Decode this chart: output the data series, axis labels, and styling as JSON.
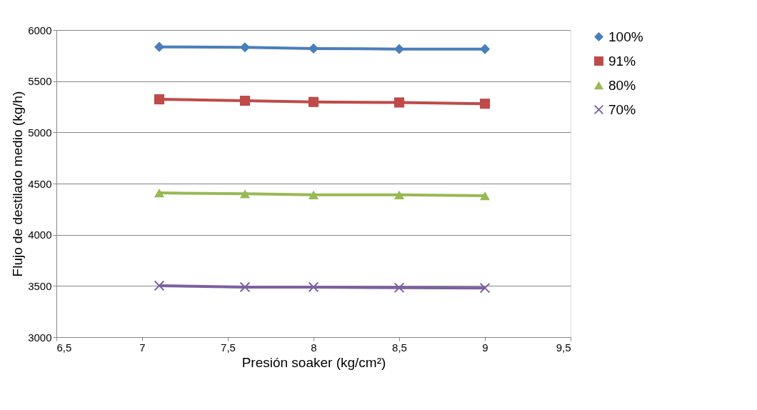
{
  "chart_data": {
    "type": "line",
    "xlabel": "Presión soaker (kg/cm²)",
    "ylabel": "Flujo de destilado medio (kg/h)",
    "x": [
      7.1,
      7.6,
      8,
      8.5,
      9
    ],
    "series": [
      {
        "name": "100%",
        "color": "#4a7ebb",
        "marker": "diamond",
        "values": [
          5835,
          5831,
          5819,
          5814,
          5814
        ]
      },
      {
        "name": "91%",
        "color": "#be4b48",
        "marker": "square",
        "values": [
          5323,
          5309,
          5297,
          5292,
          5280
        ]
      },
      {
        "name": "80%",
        "color": "#98b954",
        "marker": "triangle",
        "values": [
          4409,
          4400,
          4390,
          4390,
          4381
        ]
      },
      {
        "name": "70%",
        "color": "#7d60a0",
        "marker": "cross",
        "values": [
          3503,
          3489,
          3489,
          3483,
          3480
        ]
      }
    ],
    "xlim": [
      6.5,
      9.5
    ],
    "xticks": [
      {
        "value": 6.5,
        "label": "6,5"
      },
      7,
      {
        "value": 7.5,
        "label": "7,5"
      },
      8,
      {
        "value": 8.5,
        "label": "8,5"
      },
      9,
      {
        "value": 9.5,
        "label": "9,5"
      }
    ],
    "ylim": [
      3000,
      6000
    ],
    "yticks": [
      3000,
      3500,
      4000,
      4500,
      5000,
      5500,
      6000
    ],
    "grid": "y",
    "legend": "right",
    "line_style": "solid"
  }
}
